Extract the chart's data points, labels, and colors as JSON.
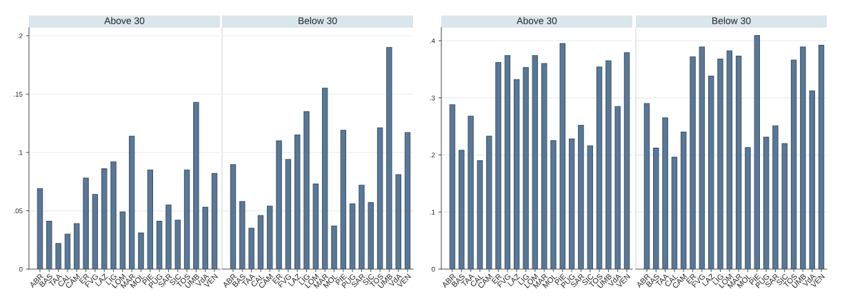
{
  "chart_data": [
    {
      "type": "bar",
      "title": "Above 30",
      "categories": [
        "ABR",
        "BAS",
        "TAA",
        "CAL",
        "CAM",
        "ER",
        "FVG",
        "LAZ",
        "LIG",
        "LOM",
        "MAR",
        "MOL",
        "PIE",
        "PUG",
        "SAR",
        "SIC",
        "TOS",
        "UMB",
        "VdA",
        "VEN"
      ],
      "color": "#5a7896",
      "values": [
        0.069,
        0.041,
        0.022,
        0.03,
        0.039,
        0.078,
        0.064,
        0.086,
        0.092,
        0.049,
        0.114,
        0.031,
        0.085,
        0.041,
        0.055,
        0.042,
        0.085,
        0.143,
        0.053,
        0.082
      ],
      "ylim": [
        0,
        0.207
      ],
      "yticks": [
        0,
        {
          "value": 0.05,
          "label": ".05"
        },
        {
          "value": 0.1,
          "label": ".1"
        },
        {
          "value": 0.15,
          "label": ".15"
        },
        {
          "value": 0.2,
          "label": ".2"
        }
      ],
      "grid": "y"
    },
    {
      "type": "bar",
      "title": "Below 30",
      "categories": [
        "ABR",
        "BAS",
        "TAA",
        "CAL",
        "CAM",
        "ER",
        "FVG",
        "LAZ",
        "LIG",
        "LOM",
        "MAR",
        "MOL",
        "PIE",
        "PUG",
        "SAR",
        "SIC",
        "TOS",
        "UMB",
        "VdA",
        "VEN"
      ],
      "color": "#5a7896",
      "values": [
        0.0895,
        0.058,
        0.035,
        0.046,
        0.054,
        0.11,
        0.094,
        0.115,
        0.135,
        0.073,
        0.155,
        0.037,
        0.119,
        0.056,
        0.072,
        0.057,
        0.121,
        0.19,
        0.081,
        0.117
      ],
      "ylim": [
        0,
        0.207
      ],
      "yticks": [
        {
          "value": 0,
          "label": null
        },
        {
          "value": 0.05,
          "label": null
        },
        {
          "value": 0.1,
          "label": null
        },
        {
          "value": 0.15,
          "label": null
        },
        {
          "value": 0.2,
          "label": null
        }
      ],
      "grid": "y",
      "tick_labels": "x"
    },
    {
      "type": "bar",
      "title": "Above 30",
      "categories": [
        "ABR",
        "BAS",
        "TAA",
        "CAL",
        "CAM",
        "ER",
        "FVG",
        "LAZ",
        "LIG",
        "LOM",
        "MAR",
        "MOL",
        "PIE",
        "PUG",
        "SAR",
        "SIC",
        "TOS",
        "UMB",
        "VdA",
        "VEN"
      ],
      "color": "#5a7896",
      "values": [
        0.288,
        0.208,
        0.268,
        0.19,
        0.233,
        0.362,
        0.374,
        0.332,
        0.353,
        0.374,
        0.36,
        0.225,
        0.395,
        0.228,
        0.252,
        0.216,
        0.354,
        0.365,
        0.285,
        0.379
      ],
      "ylim": [
        0,
        0.423
      ],
      "yticks": [
        0,
        {
          "value": 0.1,
          "label": ".1"
        },
        {
          "value": 0.2,
          "label": ".2"
        },
        {
          "value": 0.3,
          "label": ".3"
        },
        {
          "value": 0.4,
          "label": ".4"
        }
      ],
      "grid": "y"
    },
    {
      "type": "bar",
      "title": "Below 30",
      "categories": [
        "ABR",
        "BAS",
        "TAA",
        "CAL",
        "CAM",
        "ER",
        "FVG",
        "LAZ",
        "LIG",
        "LOM",
        "MAR",
        "MOL",
        "PIE",
        "PUG",
        "SAR",
        "SIC",
        "TOS",
        "UMB",
        "VdA",
        "VEN"
      ],
      "color": "#5a7896",
      "values": [
        0.29,
        0.212,
        0.265,
        0.196,
        0.24,
        0.372,
        0.389,
        0.338,
        0.368,
        0.382,
        0.373,
        0.213,
        0.409,
        0.231,
        0.251,
        0.22,
        0.366,
        0.389,
        0.312,
        0.392
      ],
      "ylim": [
        0,
        0.423
      ],
      "yticks": [
        {
          "value": 0,
          "label": null
        },
        {
          "value": 0.1,
          "label": null
        },
        {
          "value": 0.2,
          "label": null
        },
        {
          "value": 0.3,
          "label": null
        },
        {
          "value": 0.4,
          "label": null
        }
      ],
      "grid": "y",
      "tick_labels": "x"
    }
  ]
}
